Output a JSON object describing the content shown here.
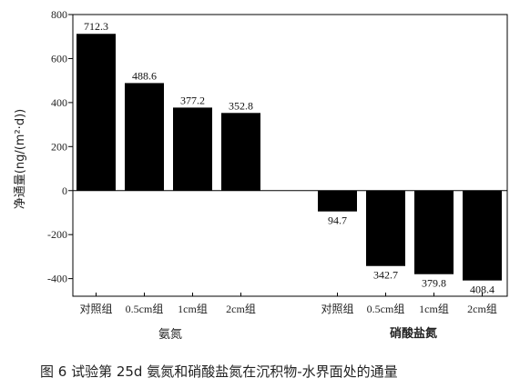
{
  "chart_data": {
    "type": "bar",
    "ylabel": "净通量(ng/(m²·d))",
    "ylim": [
      -480,
      800
    ],
    "yticks": [
      -400,
      -200,
      0,
      200,
      400,
      600,
      800
    ],
    "grid": false,
    "legend": "none",
    "bar_color": "#000000",
    "groups": [
      {
        "name": "氨氮",
        "categories": [
          "对照组",
          "0.5cm组",
          "1cm组",
          "2cm组"
        ],
        "values": [
          712.3,
          488.6,
          377.2,
          352.8
        ],
        "labels": [
          "712.3",
          "488.6",
          "377.2",
          "352.8"
        ]
      },
      {
        "name": "硝酸盐氮",
        "categories": [
          "对照组",
          "0.5cm组",
          "1cm组",
          "2cm组"
        ],
        "values": [
          -94.7,
          -342.7,
          -379.8,
          -408.4
        ],
        "labels": [
          "94.7",
          "342.7",
          "379.8",
          "408.4"
        ]
      }
    ]
  },
  "caption": "图 6   试验第 25d 氨氮和硝酸盐氮在沉积物-水界面处的通量"
}
